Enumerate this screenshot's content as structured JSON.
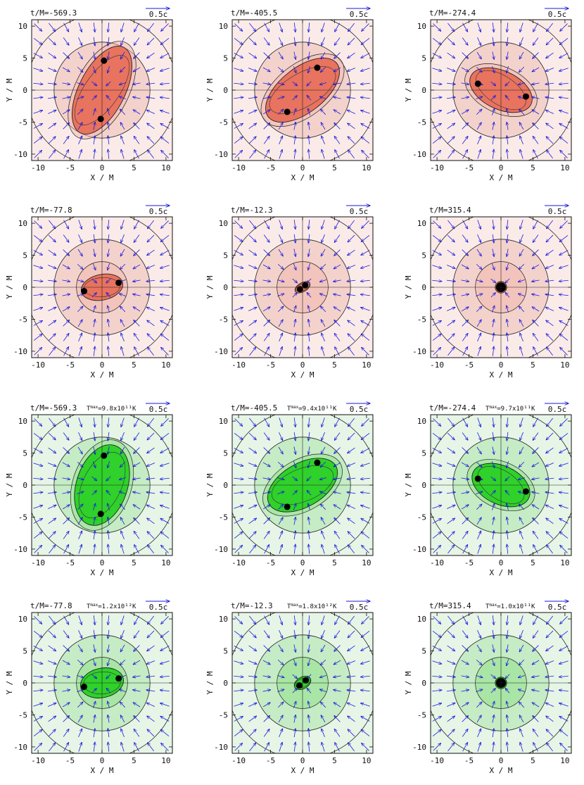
{
  "figure": {
    "arrow_scale_label": "0.5c",
    "time_prefix": "t/M=",
    "tmax_label": "T",
    "tmax_superscript": "max",
    "xlabel": "X / M",
    "ylabel": "Y / M",
    "ticks": [
      "-10",
      "-5",
      "0",
      "5",
      "10"
    ],
    "colors": {
      "arrow": "#1a1adb",
      "bh": "#000000",
      "rows12_bg": "#fbebe8",
      "rows12_outer": "#f4d2cc",
      "rows12_mid": "#f0b8ad",
      "rows12_core": "#e8735e",
      "rows34_bg": "#e6f5e6",
      "rows34_outer": "#c5ecc4",
      "rows34_mid": "#92e08c",
      "rows34_core": "#2fd12a"
    }
  },
  "chart_data": [
    {
      "panel": 1,
      "type": "vector-field",
      "scheme": "red",
      "t": "-569.3",
      "tmax": null,
      "xlim": [
        -11,
        11
      ],
      "ylim": [
        -11,
        11
      ],
      "bh": [
        [
          0.3,
          4.6
        ],
        [
          -0.2,
          -4.5
        ]
      ],
      "merged": false,
      "ellipse": {
        "a": 7.5,
        "b": 3.6,
        "angle_deg": 63
      }
    },
    {
      "panel": 2,
      "type": "vector-field",
      "scheme": "red",
      "t": "-405.5",
      "tmax": null,
      "xlim": [
        -11,
        11
      ],
      "ylim": [
        -11,
        11
      ],
      "bh": [
        [
          2.3,
          3.5
        ],
        [
          -2.4,
          -3.4
        ]
      ],
      "merged": false,
      "ellipse": {
        "a": 6.8,
        "b": 3.5,
        "angle_deg": 38
      }
    },
    {
      "panel": 3,
      "type": "vector-field",
      "scheme": "red",
      "t": "-274.4",
      "tmax": null,
      "xlim": [
        -11,
        11
      ],
      "ylim": [
        -11,
        11
      ],
      "bh": [
        [
          -3.6,
          1.0
        ],
        [
          3.9,
          -1.0
        ]
      ],
      "merged": false,
      "ellipse": {
        "a": 5.2,
        "b": 3.0,
        "angle_deg": -25
      }
    },
    {
      "panel": 4,
      "type": "vector-field",
      "scheme": "red",
      "t": "-77.8",
      "tmax": null,
      "xlim": [
        -11,
        11
      ],
      "ylim": [
        -11,
        11
      ],
      "bh": [
        [
          -2.8,
          -0.6
        ],
        [
          2.6,
          0.7
        ]
      ],
      "merged": false,
      "ellipse": {
        "a": 3.3,
        "b": 2.0,
        "angle_deg": 12
      }
    },
    {
      "panel": 5,
      "type": "vector-field",
      "scheme": "red",
      "t": "-12.3",
      "tmax": null,
      "xlim": [
        -11,
        11
      ],
      "ylim": [
        -11,
        11
      ],
      "bh": [
        [
          -0.4,
          -0.3
        ],
        [
          0.4,
          0.3
        ]
      ],
      "merged": false,
      "ellipse": {
        "a": 1.3,
        "b": 0.7,
        "angle_deg": 30
      }
    },
    {
      "panel": 6,
      "type": "vector-field",
      "scheme": "red",
      "t": "315.4",
      "tmax": null,
      "xlim": [
        -11,
        11
      ],
      "ylim": [
        -11,
        11
      ],
      "bh": [
        [
          0,
          0
        ]
      ],
      "merged": true,
      "ellipse": {
        "a": 0.9,
        "b": 0.9,
        "angle_deg": 0
      }
    },
    {
      "panel": 7,
      "type": "vector-field",
      "scheme": "green",
      "t": "-569.3",
      "tmax": "=9.8x10¹¹K",
      "xlim": [
        -11,
        11
      ],
      "ylim": [
        -11,
        11
      ],
      "bh": [
        [
          0.3,
          4.6
        ],
        [
          -0.2,
          -4.5
        ]
      ],
      "merged": false,
      "ellipse": {
        "a": 6.5,
        "b": 4.0,
        "angle_deg": 72
      }
    },
    {
      "panel": 8,
      "type": "vector-field",
      "scheme": "green",
      "t": "-405.5",
      "tmax": "=9.4x10¹¹K",
      "xlim": [
        -11,
        11
      ],
      "ylim": [
        -11,
        11
      ],
      "bh": [
        [
          2.3,
          3.5
        ],
        [
          -2.4,
          -3.4
        ]
      ],
      "merged": false,
      "ellipse": {
        "a": 6.0,
        "b": 3.4,
        "angle_deg": 30
      }
    },
    {
      "panel": 9,
      "type": "vector-field",
      "scheme": "green",
      "t": "-274.4",
      "tmax": "=9.7x10¹¹K",
      "xlim": [
        -11,
        11
      ],
      "ylim": [
        -11,
        11
      ],
      "bh": [
        [
          -3.6,
          1.0
        ],
        [
          3.9,
          -1.0
        ]
      ],
      "merged": false,
      "ellipse": {
        "a": 4.8,
        "b": 3.0,
        "angle_deg": -25
      }
    },
    {
      "panel": 10,
      "type": "vector-field",
      "scheme": "green",
      "t": "-77.8",
      "tmax": "=1.2x10¹²K",
      "xlim": [
        -11,
        11
      ],
      "ylim": [
        -11,
        11
      ],
      "bh": [
        [
          -2.8,
          -0.6
        ],
        [
          2.6,
          0.7
        ]
      ],
      "merged": false,
      "ellipse": {
        "a": 3.4,
        "b": 2.3,
        "angle_deg": 12
      }
    },
    {
      "panel": 11,
      "type": "vector-field",
      "scheme": "green",
      "t": "-12.3",
      "tmax": "=1.8x10¹²K",
      "xlim": [
        -11,
        11
      ],
      "ylim": [
        -11,
        11
      ],
      "bh": [
        [
          -0.5,
          -0.4
        ],
        [
          0.5,
          0.4
        ]
      ],
      "merged": false,
      "ellipse": {
        "a": 1.4,
        "b": 0.9,
        "angle_deg": 30
      }
    },
    {
      "panel": 12,
      "type": "vector-field",
      "scheme": "green",
      "t": "315.4",
      "tmax": "=1.0x10¹¹K",
      "xlim": [
        -11,
        11
      ],
      "ylim": [
        -11,
        11
      ],
      "bh": [
        [
          0,
          0
        ]
      ],
      "merged": true,
      "ellipse": {
        "a": 0.9,
        "b": 0.9,
        "angle_deg": 0
      }
    }
  ]
}
